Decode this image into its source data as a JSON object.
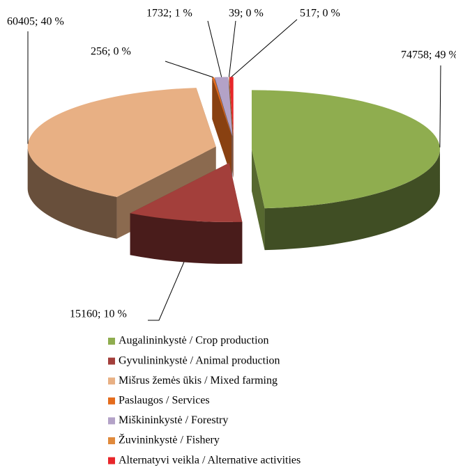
{
  "chart_data": {
    "type": "pie",
    "categories": [
      "Augalininkystė / Crop production",
      "Gyvulininkystė / Animal production",
      "Mišrus žemės ūkis / Mixed farming",
      "Paslaugos / Services",
      "Miškininkystė / Forestry",
      "Žuvininkystė / Fishery",
      "Alternatyvi veikla / Alternative activities"
    ],
    "values": [
      74758,
      15160,
      60405,
      256,
      1732,
      39,
      517
    ],
    "value_labels": [
      "74758; 49 %",
      "15160; 10 %",
      "60405; 40 %",
      "256; 0 %",
      "1732; 1 %",
      "39; 0 %",
      "517; 0 %"
    ],
    "colors": [
      "#8fad4f",
      "#a33f3b",
      "#e8b084",
      "#e46c1c",
      "#b3a2c7",
      "#e08a3c",
      "#e8262a"
    ],
    "legend": "bottom"
  }
}
